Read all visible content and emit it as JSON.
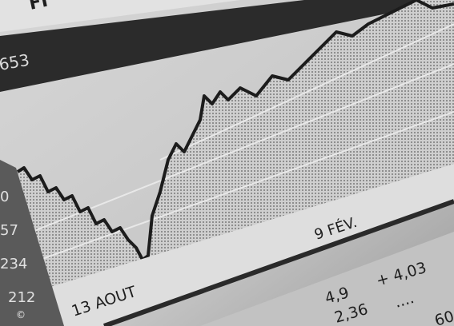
{
  "header": {
    "title": "FI",
    "code": "653"
  },
  "chart": {
    "markers": [
      "13 AOUT",
      "9 FÉV."
    ],
    "axis_labels": [
      "0",
      "57",
      "234",
      "212"
    ]
  },
  "table": {
    "rows": [
      [
        "4,9",
        "+ 4,03"
      ],
      [
        "2,36",
        "...."
      ],
      [
        "60"
      ]
    ]
  },
  "credit": "©"
}
